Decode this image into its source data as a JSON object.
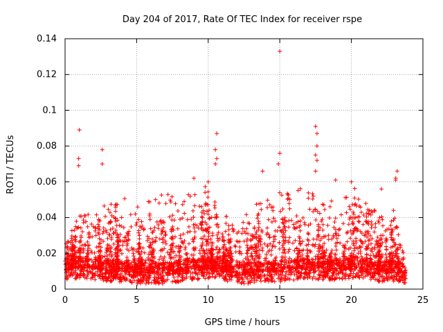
{
  "chart_data": {
    "type": "scatter",
    "title": "Day 204 of 2017, Rate Of TEC Index for receiver rspe",
    "xlabel": "GPS time / hours",
    "ylabel": "ROTI / TECUs",
    "xlim": [
      0,
      25
    ],
    "ylim": [
      0,
      0.14
    ],
    "xticks": [
      "0",
      "5",
      "10",
      "15",
      "20",
      "25"
    ],
    "yticks": [
      "0",
      "0.02",
      "0.04",
      "0.06",
      "0.08",
      "0.1",
      "0.12",
      "0.14"
    ],
    "grid": true,
    "legend": "none",
    "marker": "plus",
    "color": "#ff0000",
    "n_points_approx": 7000,
    "outliers": [
      {
        "x": 1.0,
        "y": 0.089
      },
      {
        "x": 0.95,
        "y": 0.073
      },
      {
        "x": 0.95,
        "y": 0.069
      },
      {
        "x": 2.6,
        "y": 0.078
      },
      {
        "x": 2.6,
        "y": 0.07
      },
      {
        "x": 10.6,
        "y": 0.087
      },
      {
        "x": 10.5,
        "y": 0.078
      },
      {
        "x": 10.6,
        "y": 0.073
      },
      {
        "x": 10.5,
        "y": 0.07
      },
      {
        "x": 15.0,
        "y": 0.133
      },
      {
        "x": 15.0,
        "y": 0.076
      },
      {
        "x": 14.9,
        "y": 0.07
      },
      {
        "x": 17.5,
        "y": 0.091
      },
      {
        "x": 17.6,
        "y": 0.087
      },
      {
        "x": 17.6,
        "y": 0.08
      },
      {
        "x": 17.5,
        "y": 0.075
      },
      {
        "x": 17.6,
        "y": 0.072
      },
      {
        "x": 17.5,
        "y": 0.066
      },
      {
        "x": 13.8,
        "y": 0.066
      },
      {
        "x": 23.2,
        "y": 0.066
      },
      {
        "x": 23.1,
        "y": 0.062
      },
      {
        "x": 23.1,
        "y": 0.061
      },
      {
        "x": 20.0,
        "y": 0.06
      },
      {
        "x": 10.0,
        "y": 0.06
      },
      {
        "x": 9.0,
        "y": 0.062
      },
      {
        "x": 18.9,
        "y": 0.061
      },
      {
        "x": 22.1,
        "y": 0.056
      }
    ],
    "envelope": {
      "hours": [
        0,
        1,
        2,
        3,
        4,
        5,
        6,
        7,
        8,
        9,
        10,
        11,
        12,
        13,
        14,
        15,
        16,
        17,
        18,
        19,
        20,
        21,
        22,
        23,
        23.8
      ],
      "baseline": [
        0.011,
        0.012,
        0.011,
        0.01,
        0.01,
        0.009,
        0.009,
        0.009,
        0.01,
        0.011,
        0.012,
        0.011,
        0.009,
        0.009,
        0.01,
        0.01,
        0.011,
        0.012,
        0.011,
        0.011,
        0.012,
        0.012,
        0.01,
        0.01,
        0.009
      ],
      "upper": [
        0.025,
        0.045,
        0.04,
        0.05,
        0.052,
        0.048,
        0.05,
        0.055,
        0.055,
        0.058,
        0.058,
        0.045,
        0.035,
        0.045,
        0.055,
        0.055,
        0.055,
        0.058,
        0.05,
        0.05,
        0.058,
        0.052,
        0.04,
        0.045,
        0.015
      ]
    }
  }
}
